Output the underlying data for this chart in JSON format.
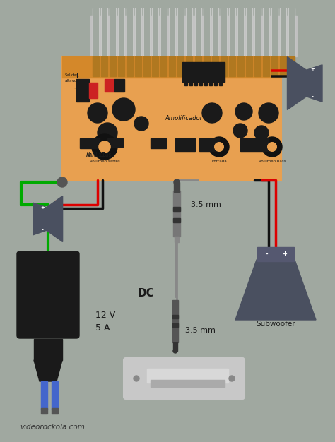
{
  "bg_color": "#a0a8a0",
  "board_color": "#e8a050",
  "heatsink_color": "#b8b8b8",
  "dark_color": "#1a1a1a",
  "red_wire": "#dd0000",
  "black_wire": "#111111",
  "green_wire": "#00aa00",
  "blue_wire": "#4466cc",
  "gray_wire": "#888888",
  "speaker_color": "#4a5060",
  "labels": {
    "dc": "DC",
    "voltage": "12 V",
    "current": "5 A",
    "jack1": "3.5 mm",
    "jack2": "3.5 mm",
    "subwoofer": "Subwoofer",
    "website": "videorockola.com",
    "amplificador": "Amplificador"
  }
}
